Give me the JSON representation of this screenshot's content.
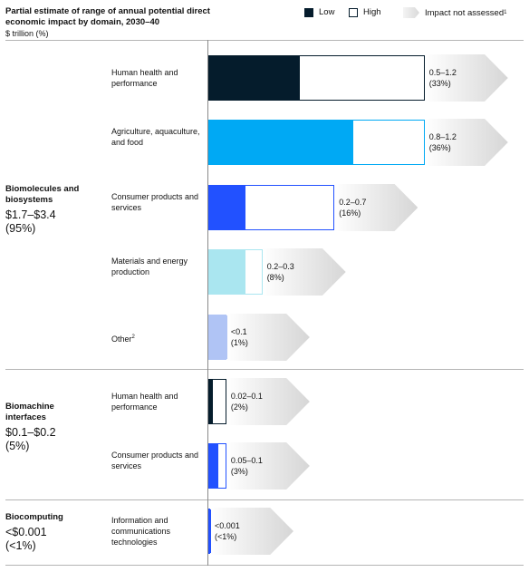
{
  "header": {
    "title": "Partial estimate of range of annual potential direct economic impact by domain, 2030–40",
    "subtitle": "$ trillion (%)"
  },
  "legend": {
    "low": "Low",
    "high": "High",
    "not_assessed": "Impact not assessed",
    "not_assessed_footnote": "1"
  },
  "colors": {
    "navy": "#051c2c",
    "cyan": "#00a9f4",
    "blue": "#2251ff",
    "light_cyan": "#aae6f0",
    "light_blue": "#b0c4f5"
  },
  "chart_data": {
    "type": "bar",
    "orientation": "horizontal",
    "title": "Partial estimate of range of annual potential direct economic impact by domain, 2030–40",
    "unit": "$ trillion (%)",
    "xlim": [
      0,
      1.2
    ],
    "groups": [
      {
        "name": "Biomolecules and biosystems",
        "range": "$1.7–$3.4",
        "share": "(95%)",
        "items": [
          {
            "label": "Human health and performance",
            "low": 0.5,
            "high": 1.2,
            "range_label": "0.5–1.2",
            "share_label": "(33%)",
            "color": "#051c2c"
          },
          {
            "label": "Agriculture, aquaculture, and food",
            "low": 0.8,
            "high": 1.2,
            "range_label": "0.8–1.2",
            "share_label": "(36%)",
            "color": "#00a9f4"
          },
          {
            "label": "Consumer products and services",
            "low": 0.2,
            "high": 0.7,
            "range_label": "0.2–0.7",
            "share_label": "(16%)",
            "color": "#2251ff"
          },
          {
            "label": "Materials and energy production",
            "low": 0.2,
            "high": 0.3,
            "range_label": "0.2–0.3",
            "share_label": "(8%)",
            "color": "#aae6f0"
          },
          {
            "label": "Other",
            "footnote": "2",
            "low": 0.1,
            "high": 0.1,
            "range_label": "<0.1",
            "share_label": "(1%)",
            "color": "#b0c4f5"
          }
        ]
      },
      {
        "name": "Biomachine interfaces",
        "range": "$0.1–$0.2",
        "share": "(5%)",
        "items": [
          {
            "label": "Human health and performance",
            "low": 0.02,
            "high": 0.1,
            "range_label": "0.02–0.1",
            "share_label": "(2%)",
            "color": "#051c2c"
          },
          {
            "label": "Consumer products and services",
            "low": 0.05,
            "high": 0.1,
            "range_label": "0.05–0.1",
            "share_label": "(3%)",
            "color": "#2251ff"
          }
        ]
      },
      {
        "name": "Biocomputing",
        "range": "<$0.001",
        "share": "(<1%)",
        "items": [
          {
            "label": "Information and communications technologies",
            "low": 0.001,
            "high": 0.001,
            "range_label": "<0.001",
            "share_label": "(<1%)",
            "color": "#2251ff"
          }
        ]
      }
    ]
  }
}
